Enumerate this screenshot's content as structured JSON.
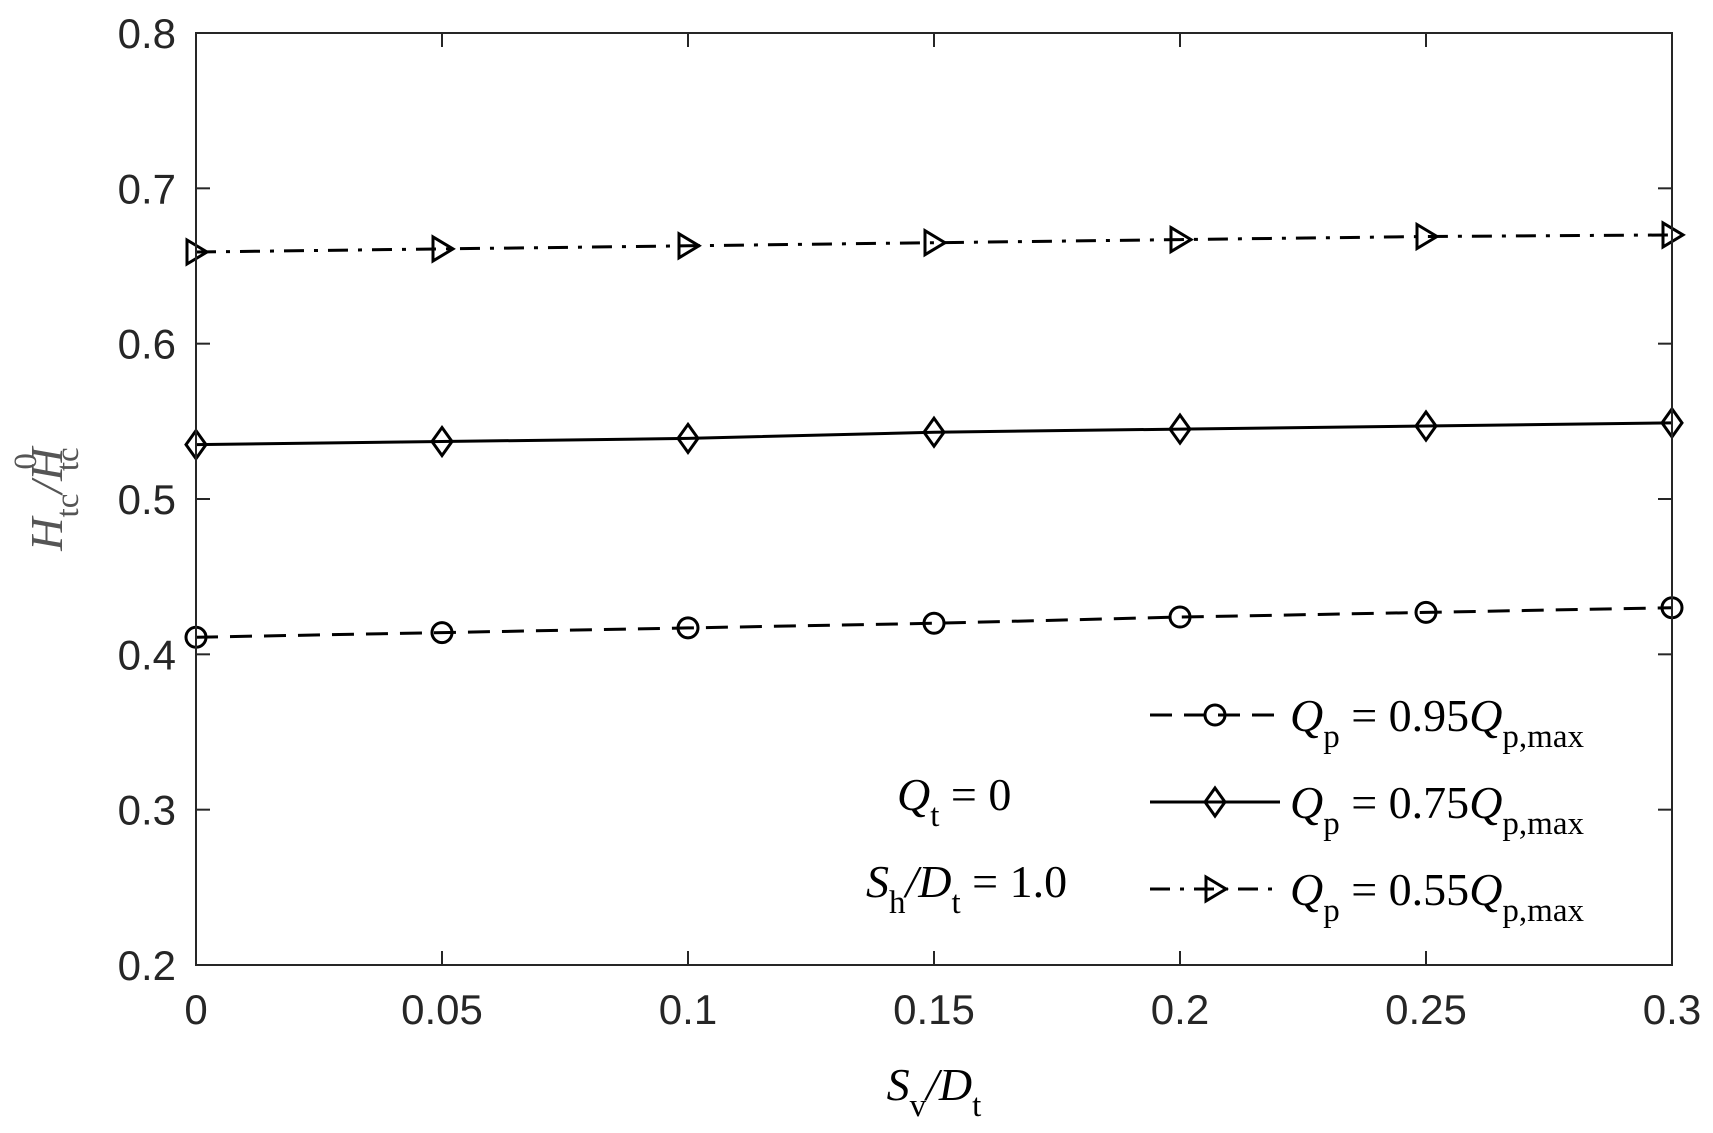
{
  "chart_data": {
    "type": "line",
    "title": "",
    "xlabel": {
      "main": "S",
      "sub1": "v",
      "mid": "/D",
      "sub2": "t"
    },
    "ylabel": {
      "main": "H",
      "sub1": "tc",
      "mid": "/H",
      "sub2": "tc",
      "sup2": "0"
    },
    "xlim": [
      0,
      0.3
    ],
    "ylim": [
      0.2,
      0.8
    ],
    "xticks": [
      0,
      0.05,
      0.1,
      0.15,
      0.2,
      0.25,
      0.3
    ],
    "xtick_labels": [
      "0",
      "0.05",
      "0.1",
      "0.15",
      "0.2",
      "0.25",
      "0.3"
    ],
    "yticks": [
      0.2,
      0.3,
      0.4,
      0.5,
      0.6,
      0.7,
      0.8
    ],
    "ytick_labels": [
      "0.2",
      "0.3",
      "0.4",
      "0.5",
      "0.6",
      "0.7",
      "0.8"
    ],
    "grid": false,
    "legend_position": "bottom-right",
    "x": [
      0,
      0.05,
      0.1,
      0.15,
      0.2,
      0.25,
      0.3
    ],
    "series": [
      {
        "legend": {
          "pre": "Q",
          "pre_sub": "p",
          "eq": " = 0.95",
          "post": "Q",
          "post_sub": "p,max"
        },
        "marker": "circle",
        "line_style": "dashed",
        "values": [
          0.411,
          0.414,
          0.417,
          0.42,
          0.424,
          0.427,
          0.43
        ]
      },
      {
        "legend": {
          "pre": "Q",
          "pre_sub": "p",
          "eq": " = 0.75",
          "post": "Q",
          "post_sub": "p,max"
        },
        "marker": "diamond",
        "line_style": "solid",
        "values": [
          0.535,
          0.537,
          0.539,
          0.543,
          0.545,
          0.547,
          0.549
        ]
      },
      {
        "legend": {
          "pre": "Q",
          "pre_sub": "p",
          "eq": " = 0.55",
          "post": "Q",
          "post_sub": "p,max"
        },
        "marker": "triangle-right",
        "line_style": "dash-dot",
        "values": [
          0.659,
          0.661,
          0.663,
          0.665,
          0.667,
          0.669,
          0.67
        ]
      }
    ],
    "annotations": [
      {
        "main": "Q",
        "sub": "t",
        "rest": " = 0"
      },
      {
        "main": "S",
        "sub": "h",
        "mid": "/D",
        "sub2": "t",
        "rest": " = 1.0"
      }
    ],
    "colors": {
      "line": "#000000",
      "axis": "#262626",
      "ylabel": "#555555"
    }
  }
}
